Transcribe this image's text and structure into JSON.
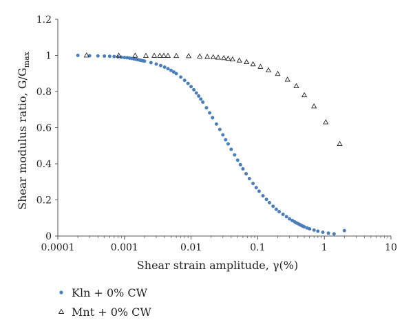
{
  "chart_data": {
    "type": "scatter",
    "title": "",
    "xlabel": "Shear strain amplitude, γ(%)",
    "ylabel_main": "Shear modulus ratio, G/G",
    "ylabel_sub": "max",
    "x_scale": "log",
    "xlim": [
      0.0001,
      10
    ],
    "ylim": [
      0,
      1.2
    ],
    "x_ticks": [
      0.0001,
      0.001,
      0.01,
      0.1,
      1,
      10
    ],
    "x_tick_labels": [
      "0.0001",
      "0.001",
      "0.01",
      "0.1",
      "1",
      "10"
    ],
    "y_ticks": [
      0,
      0.2,
      0.4,
      0.6,
      0.8,
      1,
      1.2
    ],
    "y_tick_labels": [
      "0",
      "0.2",
      "0.4",
      "0.6",
      "0.8",
      "1",
      "1.2"
    ],
    "grid": false,
    "legend": "bottom-left",
    "colors": {
      "kln": "#4a7ebb",
      "mnt": "#222222"
    },
    "series": [
      {
        "name": "Kln + 0% CW",
        "marker": "circle",
        "x": [
          0.0002,
          0.0003,
          0.0004,
          0.0005,
          0.0006,
          0.0007,
          0.0008,
          0.0009,
          0.001,
          0.0011,
          0.0012,
          0.0013,
          0.0014,
          0.0015,
          0.0016,
          0.0017,
          0.0018,
          0.0019,
          0.002,
          0.0025,
          0.003,
          0.0035,
          0.004,
          0.0045,
          0.005,
          0.0055,
          0.006,
          0.007,
          0.008,
          0.009,
          0.01,
          0.011,
          0.012,
          0.013,
          0.014,
          0.015,
          0.017,
          0.019,
          0.021,
          0.024,
          0.027,
          0.03,
          0.033,
          0.036,
          0.04,
          0.045,
          0.05,
          0.055,
          0.06,
          0.067,
          0.075,
          0.085,
          0.095,
          0.105,
          0.12,
          0.135,
          0.15,
          0.17,
          0.19,
          0.21,
          0.24,
          0.27,
          0.3,
          0.33,
          0.36,
          0.38,
          0.4,
          0.42,
          0.44,
          0.46,
          0.48,
          0.5,
          0.55,
          0.6,
          0.7,
          0.8,
          0.95,
          1.15,
          1.4,
          2.0
        ],
        "y": [
          1.0,
          0.998,
          0.997,
          0.996,
          0.995,
          0.994,
          0.992,
          0.99,
          0.988,
          0.987,
          0.985,
          0.983,
          0.98,
          0.978,
          0.976,
          0.974,
          0.972,
          0.97,
          0.968,
          0.96,
          0.952,
          0.944,
          0.935,
          0.926,
          0.917,
          0.908,
          0.899,
          0.88,
          0.862,
          0.845,
          0.827,
          0.81,
          0.792,
          0.775,
          0.758,
          0.741,
          0.71,
          0.682,
          0.655,
          0.62,
          0.59,
          0.56,
          0.533,
          0.51,
          0.48,
          0.449,
          0.42,
          0.395,
          0.372,
          0.345,
          0.318,
          0.291,
          0.268,
          0.248,
          0.223,
          0.203,
          0.185,
          0.165,
          0.148,
          0.135,
          0.12,
          0.107,
          0.095,
          0.086,
          0.078,
          0.073,
          0.069,
          0.065,
          0.061,
          0.057,
          0.054,
          0.051,
          0.045,
          0.04,
          0.033,
          0.027,
          0.021,
          0.016,
          0.012,
          0.03
        ]
      },
      {
        "name": "Mnt + 0% CW",
        "marker": "triangle",
        "x": [
          0.00027,
          0.00082,
          0.00145,
          0.0021,
          0.0028,
          0.0034,
          0.0039,
          0.0045,
          0.006,
          0.0092,
          0.0135,
          0.0175,
          0.0215,
          0.0255,
          0.031,
          0.036,
          0.042,
          0.053,
          0.068,
          0.085,
          0.11,
          0.145,
          0.2,
          0.28,
          0.38,
          0.5,
          0.7,
          1.05,
          1.7
        ],
        "y": [
          1.0,
          0.999,
          0.999,
          0.998,
          0.998,
          0.998,
          0.998,
          0.998,
          0.997,
          0.996,
          0.994,
          0.992,
          0.99,
          0.988,
          0.985,
          0.982,
          0.978,
          0.972,
          0.963,
          0.951,
          0.937,
          0.918,
          0.898,
          0.866,
          0.83,
          0.78,
          0.718,
          0.63,
          0.51
        ]
      }
    ]
  }
}
